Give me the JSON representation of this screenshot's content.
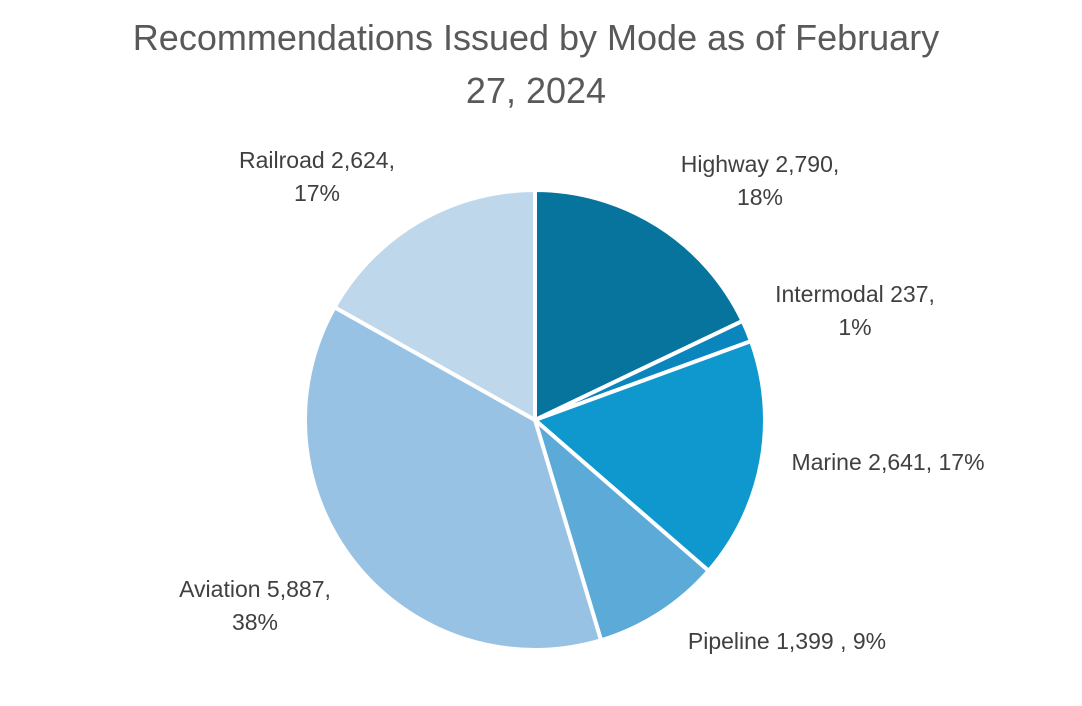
{
  "chart_data": {
    "type": "pie",
    "title": "Recommendations Issued by Mode as of February 27, 2024",
    "title_lines": [
      "Recommendations Issued by Mode as of February",
      "27, 2024"
    ],
    "start_angle_deg": 0,
    "direction": "clockwise",
    "legend": "none",
    "slices": [
      {
        "name": "Highway",
        "value": 2790,
        "percent": 18,
        "color": "#07749E",
        "label_lines": [
          "Highway 2,790,",
          "18%"
        ]
      },
      {
        "name": "Intermodal",
        "value": 237,
        "percent": 1,
        "color": "#0A85BD",
        "label_lines": [
          "Intermodal 237,",
          "1%"
        ]
      },
      {
        "name": "Marine",
        "value": 2641,
        "percent": 17,
        "color": "#0E98CD",
        "label_lines": [
          "Marine 2,641, 17%"
        ]
      },
      {
        "name": "Pipeline",
        "value": 1399,
        "percent": 9,
        "color": "#5BAAD8",
        "label_lines": [
          "Pipeline 1,399 , 9%"
        ]
      },
      {
        "name": "Aviation",
        "value": 5887,
        "percent": 38,
        "color": "#98C2E3",
        "label_lines": [
          "Aviation 5,887,",
          "38%"
        ]
      },
      {
        "name": "Railroad",
        "value": 2624,
        "percent": 17,
        "color": "#BED7EB",
        "label_lines": [
          "Railroad 2,624,",
          "17%"
        ]
      }
    ]
  }
}
